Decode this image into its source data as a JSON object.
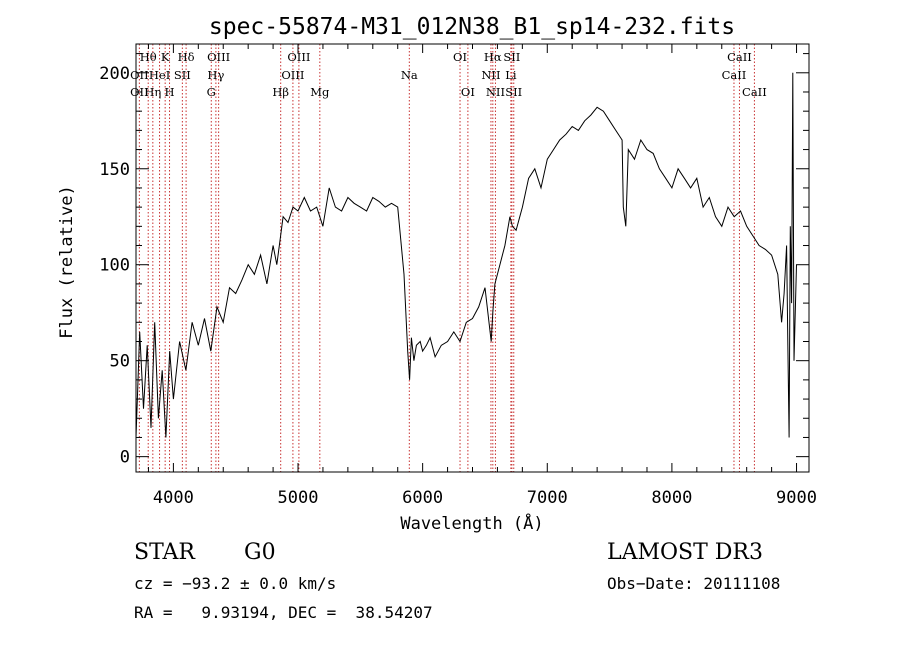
{
  "chart_data": {
    "type": "line",
    "title": "spec-55874-M31_012N38_B1_sp14-232.fits",
    "xlabel": "Wavelength (Å)",
    "ylabel": "Flux (relative)",
    "xlim": [
      3700,
      9100
    ],
    "ylim": [
      -8,
      215
    ],
    "xticks": [
      4000,
      5000,
      6000,
      7000,
      8000,
      9000
    ],
    "xtick_labels": [
      "4000",
      "5000",
      "6000",
      "7000",
      "8000",
      "9000"
    ],
    "yticks": [
      0,
      50,
      100,
      150,
      200
    ],
    "ytick_labels": [
      "0",
      "50",
      "100",
      "150",
      "200"
    ],
    "grid": false,
    "series": [
      {
        "name": "flux",
        "x": [
          3700,
          3730,
          3760,
          3790,
          3820,
          3850,
          3880,
          3910,
          3940,
          3970,
          4000,
          4050,
          4100,
          4150,
          4200,
          4250,
          4300,
          4350,
          4400,
          4450,
          4500,
          4550,
          4600,
          4650,
          4700,
          4750,
          4800,
          4830,
          4860,
          4880,
          4920,
          4960,
          5000,
          5050,
          5100,
          5150,
          5200,
          5250,
          5300,
          5350,
          5400,
          5450,
          5500,
          5550,
          5600,
          5650,
          5700,
          5750,
          5800,
          5850,
          5880,
          5895,
          5910,
          5930,
          5950,
          5980,
          6000,
          6030,
          6060,
          6100,
          6150,
          6200,
          6250,
          6300,
          6350,
          6400,
          6450,
          6500,
          6550,
          6563,
          6580,
          6620,
          6660,
          6700,
          6720,
          6750,
          6800,
          6850,
          6900,
          6950,
          7000,
          7050,
          7100,
          7150,
          7200,
          7250,
          7300,
          7350,
          7400,
          7450,
          7500,
          7550,
          7600,
          7610,
          7630,
          7650,
          7700,
          7750,
          7800,
          7850,
          7900,
          7950,
          8000,
          8050,
          8100,
          8150,
          8200,
          8250,
          8300,
          8350,
          8400,
          8450,
          8500,
          8550,
          8600,
          8650,
          8700,
          8750,
          8800,
          8850,
          8880,
          8900,
          8920,
          8930,
          8940,
          8950,
          8960,
          8970,
          8980,
          9000
        ],
        "y": [
          10,
          65,
          25,
          58,
          15,
          70,
          20,
          45,
          10,
          55,
          30,
          60,
          45,
          70,
          58,
          72,
          55,
          78,
          70,
          88,
          85,
          92,
          100,
          95,
          105,
          90,
          110,
          100,
          115,
          125,
          122,
          130,
          128,
          135,
          128,
          130,
          120,
          140,
          130,
          128,
          135,
          132,
          130,
          128,
          135,
          133,
          130,
          132,
          130,
          95,
          55,
          40,
          62,
          50,
          58,
          60,
          55,
          58,
          62,
          52,
          58,
          60,
          65,
          60,
          70,
          72,
          78,
          88,
          60,
          75,
          90,
          100,
          110,
          125,
          120,
          118,
          130,
          145,
          150,
          140,
          155,
          160,
          165,
          168,
          172,
          170,
          175,
          178,
          182,
          180,
          175,
          170,
          165,
          130,
          120,
          160,
          155,
          165,
          160,
          158,
          150,
          145,
          140,
          150,
          145,
          140,
          145,
          130,
          135,
          125,
          120,
          130,
          125,
          128,
          120,
          115,
          110,
          108,
          105,
          95,
          70,
          85,
          110,
          60,
          10,
          120,
          80,
          200,
          50,
          100
        ]
      }
    ],
    "line_markers": [
      {
        "label": "Hθ",
        "wavelength": 3798,
        "row": 1
      },
      {
        "label": "K",
        "wavelength": 3934,
        "row": 1
      },
      {
        "label": "Hδ",
        "wavelength": 4102,
        "row": 1
      },
      {
        "label": "OIII",
        "wavelength": 4363,
        "row": 1
      },
      {
        "label": "OIII",
        "wavelength": 5007,
        "row": 1
      },
      {
        "label": "OI",
        "wavelength": 6300,
        "row": 1
      },
      {
        "label": "Hα",
        "wavelength": 6563,
        "row": 1
      },
      {
        "label": "SII",
        "wavelength": 6716,
        "row": 1
      },
      {
        "label": "CaII",
        "wavelength": 8542,
        "row": 1
      },
      {
        "label": "OII",
        "wavelength": 3727,
        "row": 2
      },
      {
        "label": "HeI",
        "wavelength": 3889,
        "row": 2
      },
      {
        "label": "SII",
        "wavelength": 4072,
        "row": 2
      },
      {
        "label": "Hγ",
        "wavelength": 4341,
        "row": 2
      },
      {
        "label": "OIII",
        "wavelength": 4959,
        "row": 2
      },
      {
        "label": "Na",
        "wavelength": 5893,
        "row": 2
      },
      {
        "label": "NII",
        "wavelength": 6548,
        "row": 2
      },
      {
        "label": "Li",
        "wavelength": 6708,
        "row": 2
      },
      {
        "label": "CaII",
        "wavelength": 8498,
        "row": 2
      },
      {
        "label": "OII",
        "wavelength": 3727,
        "row": 3
      },
      {
        "label": "Hη",
        "wavelength": 3835,
        "row": 3
      },
      {
        "label": "H",
        "wavelength": 3969,
        "row": 3
      },
      {
        "label": "G",
        "wavelength": 4304,
        "row": 3
      },
      {
        "label": "Hβ",
        "wavelength": 4861,
        "row": 3
      },
      {
        "label": "Mg",
        "wavelength": 5175,
        "row": 3
      },
      {
        "label": "OI",
        "wavelength": 6363,
        "row": 3
      },
      {
        "label": "NII",
        "wavelength": 6584,
        "row": 3
      },
      {
        "label": "SII",
        "wavelength": 6731,
        "row": 3
      },
      {
        "label": "CaII",
        "wavelength": 8662,
        "row": 3
      }
    ]
  },
  "info": {
    "class": "STAR",
    "subclass": "G0",
    "survey": "LAMOST DR3",
    "cz": "cz = −93.2 ± 0.0 km/s",
    "obs_date": "Obs−Date: 20111108",
    "radec": "RA =   9.93194, DEC =  38.54207"
  }
}
